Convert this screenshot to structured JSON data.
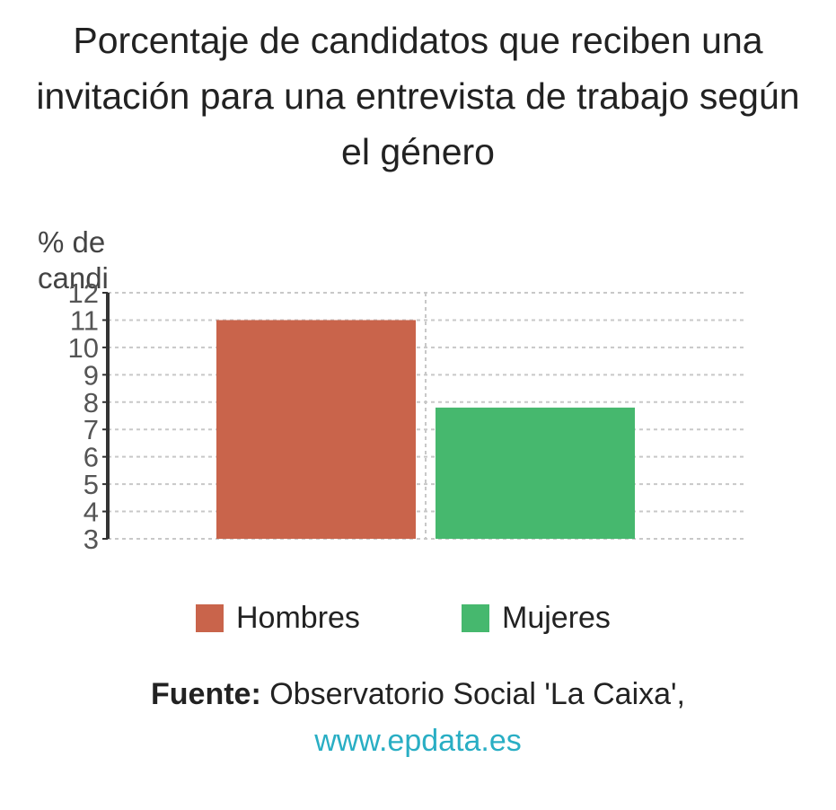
{
  "chart_data": {
    "type": "bar",
    "title": "Porcentaje de candidatos que reciben una invitación para una entrevista de trabajo según el género",
    "ylabel": "% de candi",
    "categories": [
      "Hombres",
      "Mujeres"
    ],
    "values": [
      11,
      7.8
    ],
    "colors": [
      "#c9644b",
      "#46b86e"
    ],
    "ylim": [
      3,
      12
    ],
    "yticks": [
      "3",
      "4",
      "5",
      "6",
      "7",
      "8",
      "9",
      "10",
      "11",
      "12"
    ],
    "grid": true,
    "legend": "bottom"
  },
  "legend": [
    {
      "label": "Hombres",
      "color": "#c9644b"
    },
    {
      "label": "Mujeres",
      "color": "#46b86e"
    }
  ],
  "source": {
    "label": "Fuente:",
    "text": "Observatorio Social 'La Caixa',",
    "url": "www.epdata.es",
    "url_color": "#29aec4"
  }
}
